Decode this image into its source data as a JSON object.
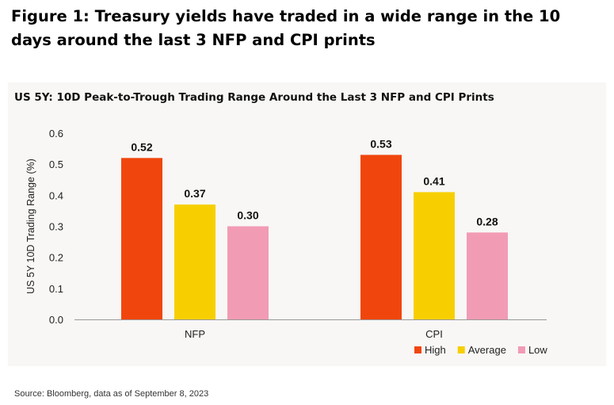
{
  "figure_title": "Figure 1: Treasury yields have traded in a wide range in the 10 days around the last 3 NFP and CPI prints",
  "source_note": "Source: Bloomberg, data as of September 8, 2023",
  "chart_data": {
    "type": "bar",
    "title": "US 5Y: 10D Peak-to-Trough Trading Range Around the Last 3 NFP and CPI Prints",
    "xlabel": "",
    "ylabel": "US 5Y 10D Trading Range (%)",
    "categories": [
      "NFP",
      "CPI"
    ],
    "series": [
      {
        "name": "High",
        "color": "#f0460d",
        "values": [
          0.52,
          0.53
        ],
        "labels": [
          "0.52",
          "0.53"
        ]
      },
      {
        "name": "Average",
        "color": "#f7cf00",
        "values": [
          0.37,
          0.41
        ],
        "labels": [
          "0.37",
          "0.41"
        ]
      },
      {
        "name": "Low",
        "color": "#f29bb5",
        "values": [
          0.3,
          0.28
        ],
        "labels": [
          "0.30",
          "0.28"
        ]
      }
    ],
    "ylim": [
      0,
      0.6
    ],
    "yticks": [
      0.0,
      0.1,
      0.2,
      0.3,
      0.4,
      0.5,
      0.6
    ],
    "ytick_labels": [
      "0.0",
      "0.1",
      "0.2",
      "0.3",
      "0.4",
      "0.5",
      "0.6"
    ],
    "grid": false,
    "legend_position": "bottom-right"
  }
}
